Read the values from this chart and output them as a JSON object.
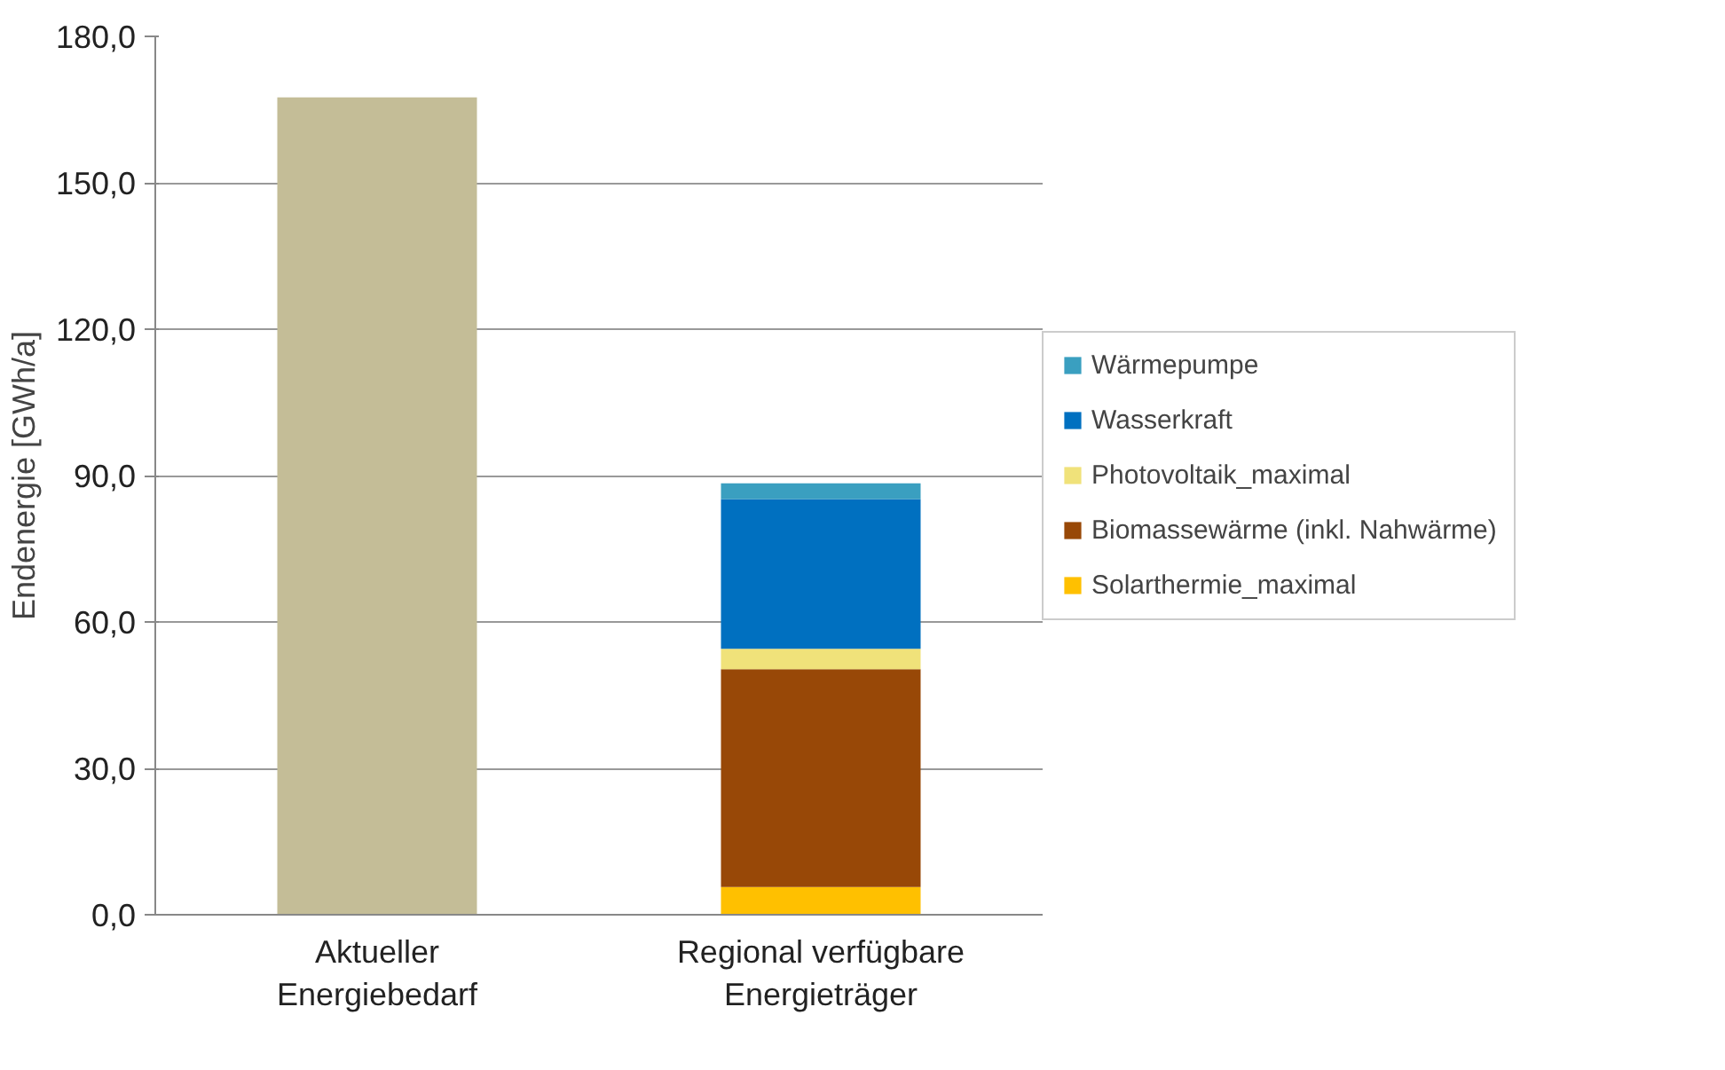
{
  "chart_data": {
    "type": "bar",
    "stacked": true,
    "ylabel": "Endenergie [GWh/a]",
    "categories": [
      "Aktueller Energiebedarf",
      "Regional verfügbare Energieträger"
    ],
    "series": [
      {
        "color": "#c4bd97",
        "values": [
          167.5,
          null
        ]
      },
      {
        "name": "Solarthermie_maximal",
        "color": "#ffc000",
        "values": [
          null,
          5.7
        ]
      },
      {
        "name": "Biomassewärme (inkl. Nahwärme)",
        "color": "#984807",
        "values": [
          null,
          44.6
        ]
      },
      {
        "name": "Photovoltaik_maximal",
        "color": "#f0e27a",
        "values": [
          null,
          4.2
        ]
      },
      {
        "name": "Wasserkraft",
        "color": "#0070c0",
        "values": [
          null,
          30.7
        ]
      },
      {
        "name": "Wärmepumpe",
        "color": "#3a9fc0",
        "values": [
          null,
          3.2
        ]
      }
    ],
    "ylim": [
      0,
      180
    ],
    "yticks": [
      {
        "value": 0,
        "label": "0,0"
      },
      {
        "value": 30,
        "label": "30,0"
      },
      {
        "value": 60,
        "label": "60,0"
      },
      {
        "value": 90,
        "label": "90,0"
      },
      {
        "value": 120,
        "label": "120,0"
      },
      {
        "value": 150,
        "label": "150,0"
      },
      {
        "value": 180,
        "label": "180,0"
      }
    ],
    "grid": "y",
    "legend": "right"
  }
}
